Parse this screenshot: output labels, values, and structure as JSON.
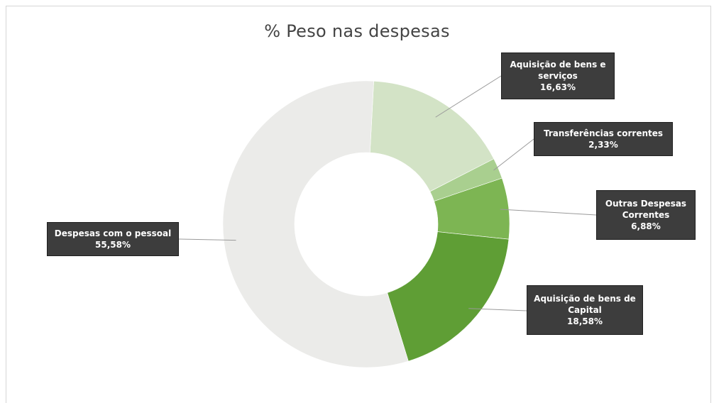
{
  "chart_data": {
    "type": "pie",
    "variant": "donut",
    "title": "% Peso nas despesas",
    "slices": [
      {
        "label_lines": [
          "Aquisição de bens e",
          "serviços"
        ],
        "value_text": "16,63%",
        "value": 16.63,
        "color": "#d3e3c6"
      },
      {
        "label_lines": [
          "Transferências correntes"
        ],
        "value_text": "2,33%",
        "value": 2.33,
        "color": "#a9cf8f"
      },
      {
        "label_lines": [
          "Outras Despesas",
          "Correntes"
        ],
        "value_text": "6,88%",
        "value": 6.88,
        "color": "#7db553"
      },
      {
        "label_lines": [
          "Aquisição de bens de",
          "Capital"
        ],
        "value_text": "18,58%",
        "value": 18.58,
        "color": "#5f9e35"
      },
      {
        "label_lines": [
          "Despesas com o pessoal"
        ],
        "value_text": "55,58%",
        "value": 55.58,
        "color": "#ebebe9"
      }
    ]
  }
}
